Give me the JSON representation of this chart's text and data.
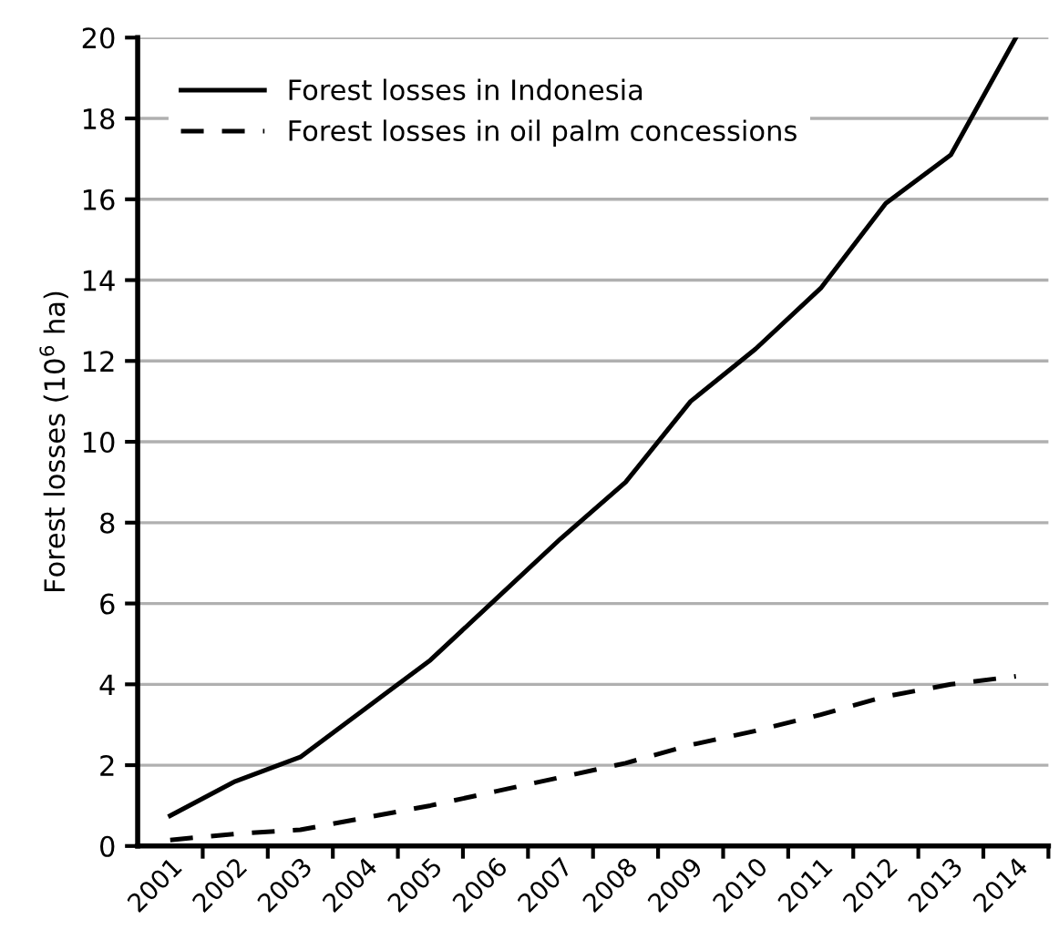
{
  "chart_data": {
    "type": "line",
    "ylabel": "Forest losses (10$^{6}$ ha)",
    "categories": [
      "2001",
      "2002",
      "2003",
      "2004",
      "2005",
      "2006",
      "2007",
      "2008",
      "2009",
      "2010",
      "2011",
      "2012",
      "2013",
      "2014"
    ],
    "series": [
      {
        "name": "Forest losses in Indonesia",
        "color": "#000000",
        "line_style": "solid",
        "values": [
          0.75,
          1.6,
          2.2,
          3.4,
          4.6,
          6.1,
          7.6,
          9.0,
          11.0,
          12.3,
          13.8,
          15.9,
          17.1,
          20.0
        ]
      },
      {
        "name": "Forest losses in oil palm concessions",
        "color": "#000000",
        "line_style": "dashed",
        "values": [
          0.15,
          0.3,
          0.4,
          0.7,
          1.0,
          1.35,
          1.7,
          2.05,
          2.5,
          2.85,
          3.25,
          3.7,
          4.0,
          4.2
        ]
      }
    ],
    "ylim": [
      0,
      20
    ],
    "yticks": [
      0,
      2,
      4,
      6,
      8,
      10,
      12,
      14,
      16,
      18,
      20
    ],
    "grid": "y",
    "legend": "top left",
    "marker": "none"
  }
}
